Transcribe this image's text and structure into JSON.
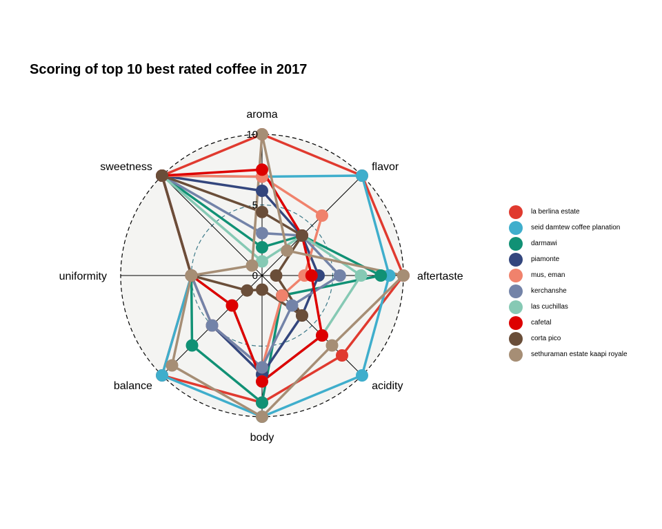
{
  "chart_data": {
    "type": "radar",
    "title": "Scoring of top 10 best rated coffee in 2017",
    "axes": [
      "aroma",
      "flavor",
      "aftertaste",
      "acidity",
      "body",
      "balance",
      "uniformity",
      "sweetness"
    ],
    "ticks": [
      "0",
      "5",
      "10"
    ],
    "range": [
      0,
      10
    ],
    "grid": true,
    "legend_position": "right",
    "series": [
      {
        "name": "la berlina estate",
        "color": "#E03A2F",
        "values": [
          10,
          10,
          10,
          8,
          9,
          10,
          5,
          10
        ]
      },
      {
        "name": "seid damtew coffee planation",
        "color": "#3FAECC",
        "values": [
          7,
          10,
          9,
          10,
          10,
          10,
          5,
          10
        ]
      },
      {
        "name": "darmawi",
        "color": "#119175",
        "values": [
          2,
          4,
          8.4,
          2,
          9,
          7,
          5,
          10
        ]
      },
      {
        "name": "piamonte",
        "color": "#33467D",
        "values": [
          6,
          4,
          4,
          4,
          7,
          5,
          5,
          10
        ]
      },
      {
        "name": "mus, eman",
        "color": "#F0826C",
        "values": [
          7,
          6,
          3,
          2,
          6.5,
          5,
          5,
          10
        ]
      },
      {
        "name": "kerchanshe",
        "color": "#7383A8",
        "values": [
          3,
          4,
          5.5,
          3,
          6.5,
          5,
          5,
          10
        ]
      },
      {
        "name": "las cuchillas",
        "color": "#86C9B4",
        "values": [
          1,
          4,
          7,
          6,
          7.5,
          3,
          5,
          10
        ]
      },
      {
        "name": "cafetal",
        "color": "#DD0000",
        "values": [
          7.5,
          4,
          3.5,
          6,
          7.5,
          3,
          5,
          10
        ]
      },
      {
        "name": "corta pico",
        "color": "#6A4E39",
        "values": [
          4.5,
          4,
          1,
          4,
          1,
          1.5,
          5,
          10
        ]
      },
      {
        "name": "sethuraman estate kaapi royale",
        "color": "#A68E75",
        "values": [
          10,
          2.5,
          10,
          7,
          10,
          9,
          5,
          1
        ]
      }
    ]
  }
}
